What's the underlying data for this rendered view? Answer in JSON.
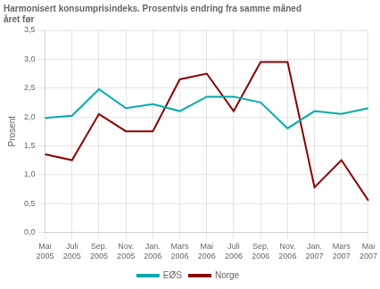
{
  "chart_data": {
    "type": "line",
    "title": "Harmonisert konsumprisindeks. Prosentvis endring fra samme måned\nåret før",
    "y_label": "Prosent",
    "categories": [
      "Mai\n2005",
      "Juli\n2005",
      "Sep.\n2005",
      "Nov.\n2005",
      "Jan.\n2006",
      "Mars\n2006",
      "Mai\n2006",
      "Juli\n2006",
      "Sep.\n2006",
      "Nov.\n2006",
      "Jan.\n2007",
      "Mars\n2007",
      "Mai\n2007"
    ],
    "series": [
      {
        "name": "EØS",
        "color": "#00AAAA",
        "values": [
          1.98,
          2.02,
          2.48,
          2.15,
          2.22,
          2.1,
          2.35,
          2.35,
          2.25,
          1.8,
          2.1,
          2.05,
          2.15
        ]
      },
      {
        "name": "Norge",
        "color": "#8B0000",
        "values": [
          1.35,
          1.25,
          2.05,
          1.75,
          1.75,
          2.65,
          2.75,
          2.1,
          2.95,
          2.95,
          0.78,
          1.25,
          0.55
        ]
      }
    ],
    "ylim": [
      0.0,
      3.5
    ],
    "yticks": [
      {
        "value": 0.0,
        "label": "0,0"
      },
      {
        "value": 0.5,
        "label": "0,5"
      },
      {
        "value": 1.0,
        "label": "1,0"
      },
      {
        "value": 1.5,
        "label": "1,5"
      },
      {
        "value": 2.0,
        "label": "2,0"
      },
      {
        "value": 2.5,
        "label": "2,5"
      },
      {
        "value": 3.0,
        "label": "3,0"
      },
      {
        "value": 3.5,
        "label": "3,5"
      }
    ],
    "grid": true,
    "legend": "bottom"
  }
}
